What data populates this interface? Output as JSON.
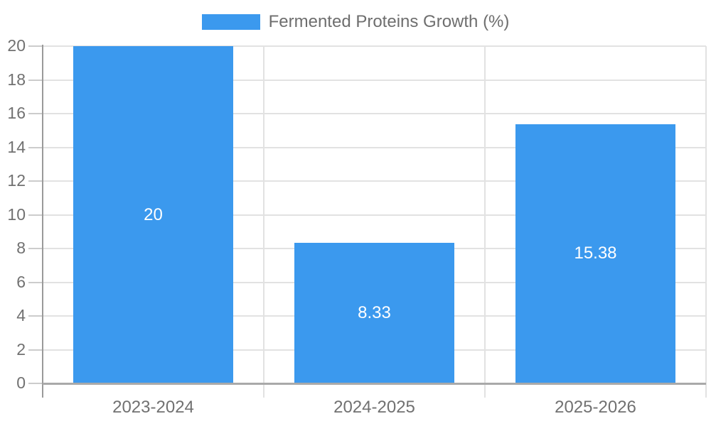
{
  "chart_data": {
    "type": "bar",
    "title": "",
    "legend_label": "Fermented Proteins Growth (%)",
    "legend_position": "top-center",
    "categories": [
      "2023-2024",
      "2024-2025",
      "2025-2026"
    ],
    "values": [
      20,
      8.33,
      15.38
    ],
    "value_labels": [
      "20",
      "8.33",
      "15.38"
    ],
    "value_label_position": "inside-center",
    "ylim": [
      0,
      20
    ],
    "y_ticks": [
      0,
      2,
      4,
      6,
      8,
      10,
      12,
      14,
      16,
      18,
      20
    ],
    "grid": "horizontal gridlines at every tick, vertical gridlines at category boundaries",
    "legend_entries": [
      {
        "label": "Fermented Proteins Growth (%)",
        "color": "#3B99EE"
      }
    ],
    "colors": {
      "bar": "#3B99EE",
      "gridline": "#E2E2E2",
      "axis_line": "#9A9A9A",
      "baseline": "#A9A9A9",
      "tick": "#CCCCCC",
      "axis_label": "#717171",
      "legend_text": "#6E6E6E",
      "value_label": "#FFFFFF",
      "background": "#FFFFFF"
    }
  }
}
